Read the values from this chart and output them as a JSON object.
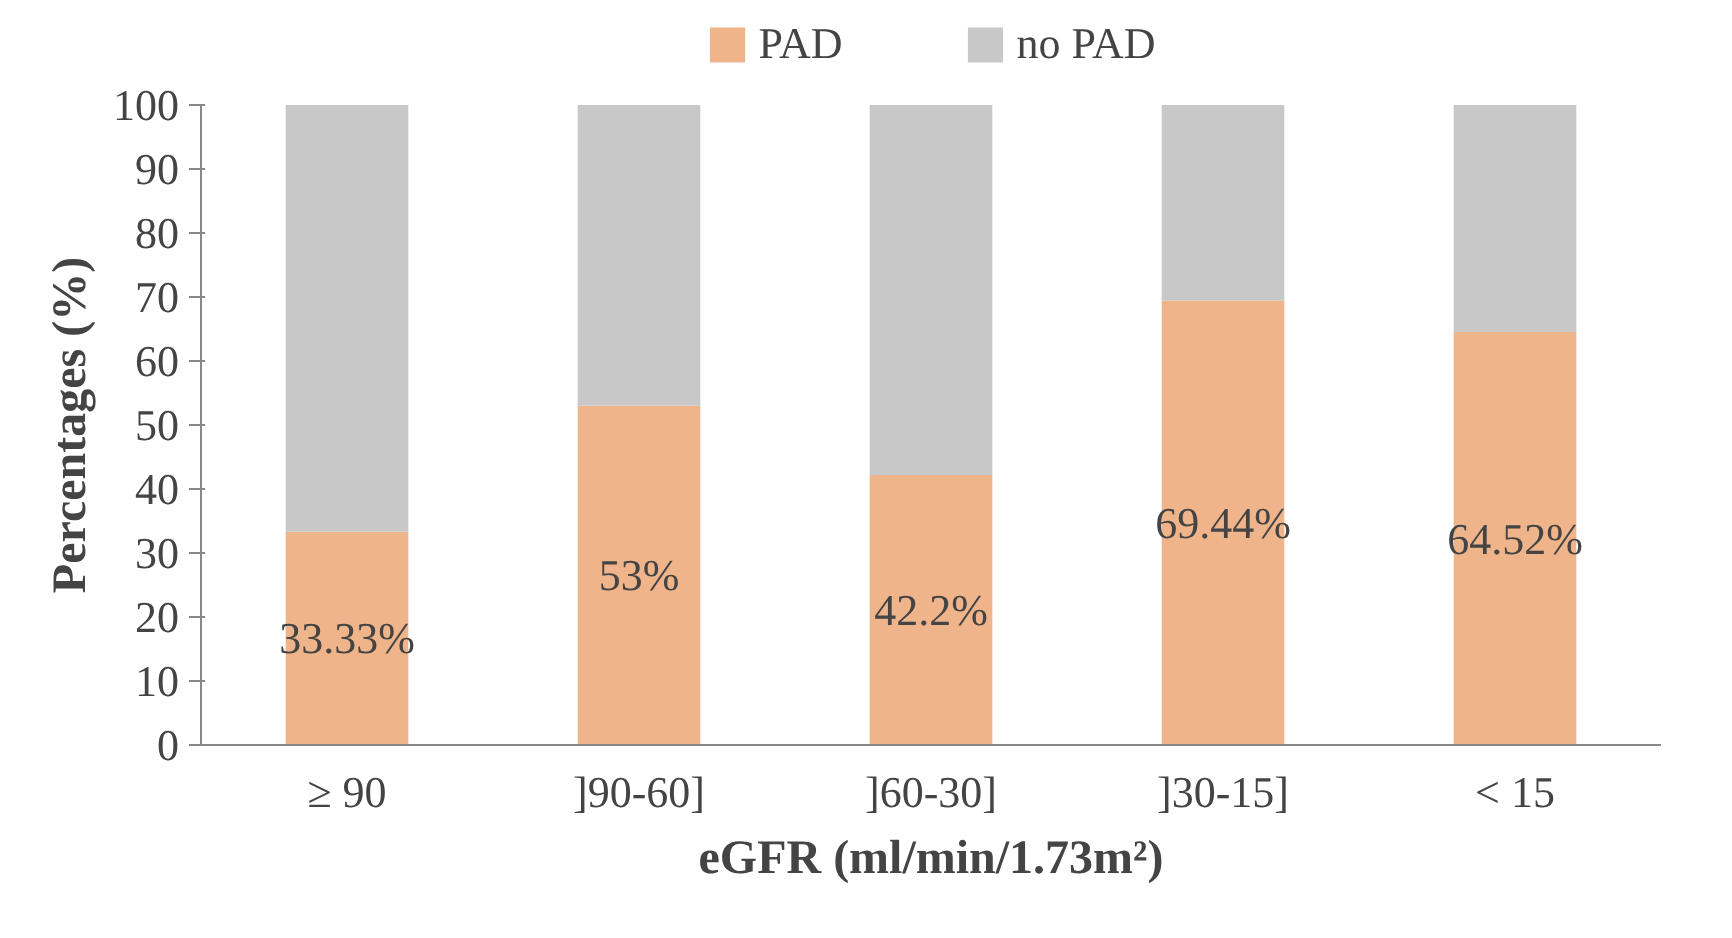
{
  "chart_data": {
    "type": "bar",
    "stacked": true,
    "xlabel": "eGFR (ml/min/1.73m²)",
    "ylabel": "Percentages (%)",
    "categories": [
      "≥ 90",
      "]90-60]",
      "]60-30]",
      "]30-15]",
      "< 15"
    ],
    "series": [
      {
        "name": "PAD",
        "color": "#f0b48a",
        "values": [
          33.33,
          53,
          42.2,
          69.44,
          64.52
        ],
        "value_labels": [
          "33.33%",
          "53%",
          "42.2%",
          "69.44%",
          "64.52%"
        ]
      },
      {
        "name": "no PAD",
        "color": "#c8c8c8",
        "values": [
          66.67,
          47,
          57.8,
          30.56,
          35.48
        ]
      }
    ],
    "ylim": [
      0,
      100
    ],
    "yticks": [
      0,
      10,
      20,
      30,
      40,
      50,
      60,
      70,
      80,
      90,
      100
    ],
    "grid": false,
    "legend": "top"
  }
}
